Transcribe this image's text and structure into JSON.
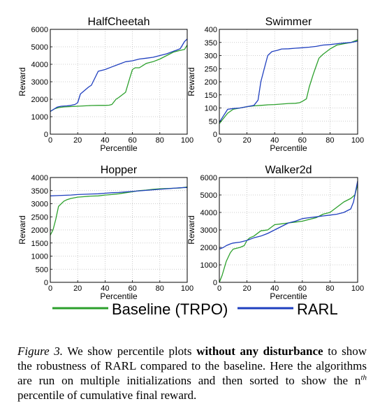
{
  "colors": {
    "baseline": "#2ca02c",
    "rarl": "#1f3fbf"
  },
  "legend": {
    "baseline": "Baseline (TRPO)",
    "rarl": "RARL"
  },
  "caption": {
    "fig_label": "Figure 3.",
    "part1": " We show percentile plots ",
    "bold": "without any disturbance",
    "part2": " to show the robustness of RARL compared to the baseline.  Here the algorithms are run on multiple initializations and then sorted to show the n",
    "sup": "th",
    "part3": " percentile of cumulative final reward."
  },
  "chart_data": [
    {
      "type": "line",
      "title": "HalfCheetah",
      "xlabel": "Percentile",
      "ylabel": "Reward",
      "xlim": [
        0,
        100
      ],
      "ylim": [
        0,
        6000
      ],
      "xticks": [
        "0",
        "20",
        "40",
        "60",
        "80",
        "100"
      ],
      "yticks": [
        "0",
        "1000",
        "2000",
        "3000",
        "4000",
        "5000",
        "6000"
      ],
      "grid": true,
      "series": [
        {
          "name": "Baseline (TRPO)",
          "x": [
            0,
            3,
            6,
            10,
            15,
            20,
            25,
            30,
            35,
            40,
            43,
            45,
            48,
            50,
            55,
            58,
            60,
            62,
            65,
            68,
            70,
            75,
            80,
            85,
            90,
            95,
            98,
            100
          ],
          "y": [
            1300,
            1450,
            1520,
            1560,
            1580,
            1600,
            1620,
            1640,
            1650,
            1650,
            1660,
            1700,
            2000,
            2100,
            2400,
            3200,
            3700,
            3800,
            3800,
            3950,
            4050,
            4150,
            4300,
            4500,
            4700,
            4800,
            4850,
            5100
          ]
        },
        {
          "name": "RARL",
          "x": [
            0,
            2,
            5,
            8,
            12,
            15,
            18,
            20,
            22,
            25,
            28,
            30,
            35,
            40,
            45,
            50,
            55,
            60,
            65,
            70,
            75,
            80,
            85,
            90,
            92,
            95,
            98,
            100
          ],
          "y": [
            1300,
            1400,
            1550,
            1600,
            1620,
            1650,
            1700,
            1800,
            2300,
            2500,
            2700,
            2800,
            3600,
            3700,
            3850,
            4000,
            4150,
            4200,
            4300,
            4350,
            4400,
            4500,
            4600,
            4750,
            4800,
            4900,
            5300,
            5450
          ]
        }
      ]
    },
    {
      "type": "line",
      "title": "Swimmer",
      "xlabel": "Percentile",
      "ylabel": "Reward",
      "xlim": [
        0,
        100
      ],
      "ylim": [
        0,
        400
      ],
      "xticks": [
        "0",
        "20",
        "40",
        "60",
        "80",
        "100"
      ],
      "yticks": [
        "0",
        "50",
        "100",
        "150",
        "200",
        "250",
        "300",
        "350",
        "400"
      ],
      "grid": true,
      "series": [
        {
          "name": "Baseline (TRPO)",
          "x": [
            0,
            3,
            6,
            10,
            15,
            20,
            25,
            30,
            35,
            40,
            45,
            50,
            55,
            58,
            60,
            63,
            65,
            68,
            70,
            72,
            75,
            80,
            85,
            90,
            95,
            100
          ],
          "y": [
            40,
            60,
            80,
            95,
            100,
            105,
            108,
            110,
            112,
            113,
            115,
            117,
            118,
            120,
            125,
            135,
            180,
            230,
            260,
            290,
            305,
            325,
            340,
            345,
            350,
            360
          ]
        },
        {
          "name": "RARL",
          "x": [
            0,
            3,
            6,
            10,
            15,
            20,
            25,
            28,
            30,
            33,
            35,
            38,
            42,
            45,
            50,
            55,
            60,
            65,
            70,
            75,
            80,
            85,
            90,
            95,
            100
          ],
          "y": [
            45,
            70,
            95,
            98,
            100,
            105,
            110,
            130,
            200,
            260,
            300,
            315,
            320,
            325,
            326,
            328,
            330,
            332,
            335,
            340,
            342,
            345,
            348,
            350,
            355
          ]
        }
      ]
    },
    {
      "type": "line",
      "title": "Hopper",
      "xlabel": "Percentile",
      "ylabel": "Reward",
      "xlim": [
        0,
        100
      ],
      "ylim": [
        0,
        4000
      ],
      "xticks": [
        "0",
        "20",
        "40",
        "60",
        "80",
        "100"
      ],
      "yticks": [
        "0",
        "500",
        "1000",
        "1500",
        "2000",
        "2500",
        "3000",
        "3500",
        "4000"
      ],
      "grid": true,
      "series": [
        {
          "name": "Baseline (TRPO)",
          "x": [
            0,
            2,
            4,
            6,
            8,
            10,
            12,
            15,
            20,
            25,
            30,
            35,
            40,
            45,
            50,
            55,
            60,
            65,
            70,
            75,
            80,
            85,
            90,
            95,
            100
          ],
          "y": [
            1800,
            2000,
            2400,
            2900,
            3000,
            3100,
            3150,
            3200,
            3250,
            3270,
            3290,
            3300,
            3330,
            3350,
            3380,
            3420,
            3460,
            3500,
            3520,
            3550,
            3570,
            3580,
            3590,
            3600,
            3640
          ]
        },
        {
          "name": "RARL",
          "x": [
            0,
            5,
            10,
            15,
            20,
            25,
            30,
            35,
            40,
            45,
            50,
            55,
            60,
            65,
            70,
            75,
            80,
            85,
            90,
            95,
            100
          ],
          "y": [
            3300,
            3310,
            3320,
            3330,
            3350,
            3360,
            3370,
            3380,
            3400,
            3420,
            3430,
            3450,
            3470,
            3490,
            3510,
            3530,
            3550,
            3570,
            3590,
            3610,
            3620
          ]
        }
      ]
    },
    {
      "type": "line",
      "title": "Walker2d",
      "xlabel": "Percentile",
      "ylabel": "Reward",
      "xlim": [
        0,
        100
      ],
      "ylim": [
        0,
        6000
      ],
      "xticks": [
        "0",
        "20",
        "40",
        "60",
        "80",
        "100"
      ],
      "yticks": [
        "0",
        "1000",
        "2000",
        "3000",
        "4000",
        "5000",
        "6000"
      ],
      "grid": true,
      "series": [
        {
          "name": "Baseline (TRPO)",
          "x": [
            0,
            2,
            5,
            8,
            10,
            15,
            18,
            20,
            22,
            25,
            30,
            35,
            40,
            45,
            50,
            55,
            60,
            65,
            70,
            75,
            80,
            85,
            90,
            95,
            98,
            100
          ],
          "y": [
            0,
            400,
            1200,
            1700,
            1900,
            2000,
            2100,
            2400,
            2550,
            2650,
            2950,
            3000,
            3300,
            3350,
            3400,
            3450,
            3500,
            3600,
            3700,
            3900,
            4000,
            4300,
            4600,
            4800,
            5000,
            5600
          ]
        },
        {
          "name": "RARL",
          "x": [
            0,
            3,
            5,
            8,
            10,
            15,
            20,
            25,
            30,
            35,
            40,
            45,
            50,
            55,
            60,
            65,
            70,
            75,
            80,
            85,
            90,
            95,
            97,
            100
          ],
          "y": [
            1900,
            2000,
            2100,
            2200,
            2250,
            2300,
            2400,
            2550,
            2650,
            2800,
            3000,
            3200,
            3400,
            3500,
            3650,
            3700,
            3750,
            3800,
            3850,
            3900,
            4000,
            4200,
            4600,
            5800
          ]
        }
      ]
    }
  ]
}
